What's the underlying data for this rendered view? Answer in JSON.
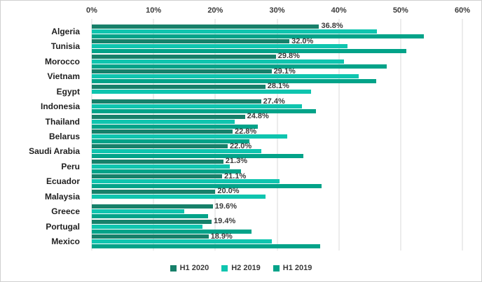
{
  "window": {
    "background": "#ffffff",
    "border_color": "#d0d0d0",
    "gridline_color": "#d9d9d9",
    "text_color": "#3b3b3b",
    "category_text_color": "#1f1f1f"
  },
  "chart_data": {
    "type": "bar",
    "orientation": "horizontal",
    "title": "",
    "xlabel": "",
    "ylabel": "",
    "x_axis": {
      "position": "top",
      "min": 0,
      "max": 60,
      "tick_step": 10,
      "ticks": [
        "0%",
        "10%",
        "20%",
        "30%",
        "40%",
        "50%",
        "60%"
      ],
      "grid": true
    },
    "categories": [
      "Algeria",
      "Tunisia",
      "Morocco",
      "Vietnam",
      "Egypt",
      "Indonesia",
      "Thailand",
      "Belarus",
      "Saudi Arabia",
      "Peru",
      "Ecuador",
      "Malaysia",
      "Greece",
      "Portugal",
      "Mexico"
    ],
    "series": [
      {
        "name": "H1 2020",
        "color": "#17806a",
        "values": [
          36.8,
          32.0,
          29.8,
          29.1,
          28.1,
          27.4,
          24.8,
          22.8,
          22.0,
          21.3,
          21.1,
          20.0,
          19.6,
          19.4,
          18.9
        ]
      },
      {
        "name": "H2 2019",
        "color": "#0fc5af",
        "values": [
          46.2,
          41.4,
          40.8,
          43.2,
          35.5,
          34.0,
          23.1,
          31.6,
          27.4,
          22.3,
          30.4,
          28.1,
          15.0,
          17.9,
          29.1
        ]
      },
      {
        "name": "H1 2019",
        "color": "#02a389",
        "values": [
          53.8,
          50.9,
          47.8,
          46.1,
          null,
          36.3,
          26.9,
          25.5,
          34.2,
          24.2,
          37.2,
          null,
          18.8,
          25.9,
          37.0
        ]
      }
    ],
    "data_labels": {
      "series": "H1 2020",
      "texts": [
        "36.8%",
        "32.0%",
        "29.8%",
        "29.1%",
        "28.1%",
        "27.4%",
        "24.8%",
        "22.8%",
        "22.0%",
        "21.3%",
        "21.1%",
        "20.0%",
        "19.6%",
        "19.4%",
        "18.9%"
      ]
    },
    "legend": {
      "position": "bottom",
      "items": [
        "H1 2020",
        "H2 2019",
        "H1 2019"
      ]
    }
  }
}
